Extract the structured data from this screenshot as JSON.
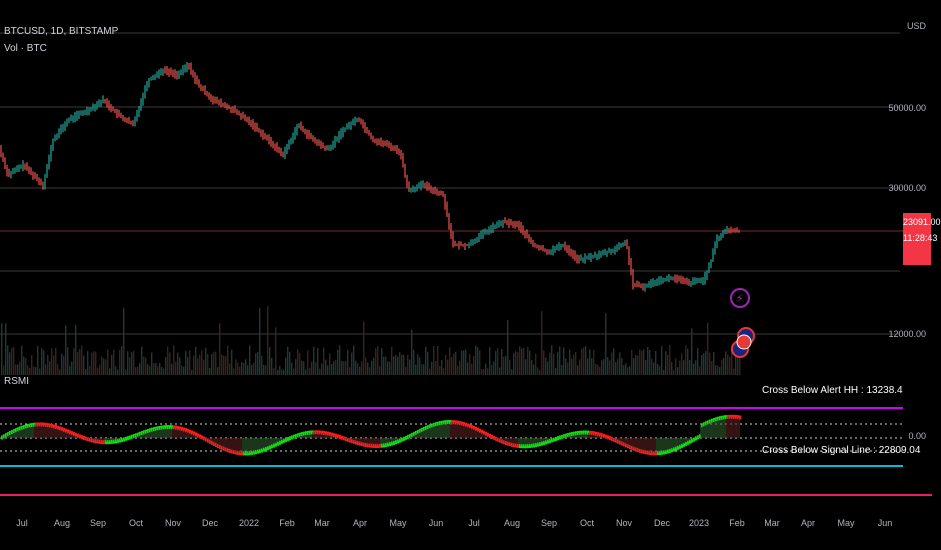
{
  "header": {
    "symbol_line": "BTCUSD, 1D, BITSTAMP",
    "volume_label": "Vol · BTC",
    "indicator_label": "RSMI"
  },
  "price_axis": {
    "currency": "USD",
    "levels": [
      "50000.00",
      "30000.00",
      "12000.00"
    ],
    "last_price": "23091.00",
    "countdown": "11:28:43"
  },
  "rsmi_axis": {
    "zero_label": "0.00"
  },
  "alerts": {
    "hh": "Cross Below Alert HH : 13238.4",
    "signal": "Cross Below Signal Line : 22809.04"
  },
  "time_axis": [
    "Jul",
    "Aug",
    "Sep",
    "Oct",
    "Nov",
    "Dec",
    "2022",
    "Feb",
    "Mar",
    "Apr",
    "May",
    "Jun",
    "Jul",
    "Aug",
    "Sep",
    "Oct",
    "Nov",
    "Dec",
    "2023",
    "Feb",
    "Mar",
    "Apr",
    "May",
    "Jun"
  ],
  "colors": {
    "up": "#26a69a",
    "down": "#ef5350",
    "rsmi_up": "#00e600",
    "rsmi_down": "#ff1a1a",
    "upper_band": "#d500f9",
    "lower_band": "#00bcd4",
    "bottom_line": "#e91e63"
  }
}
